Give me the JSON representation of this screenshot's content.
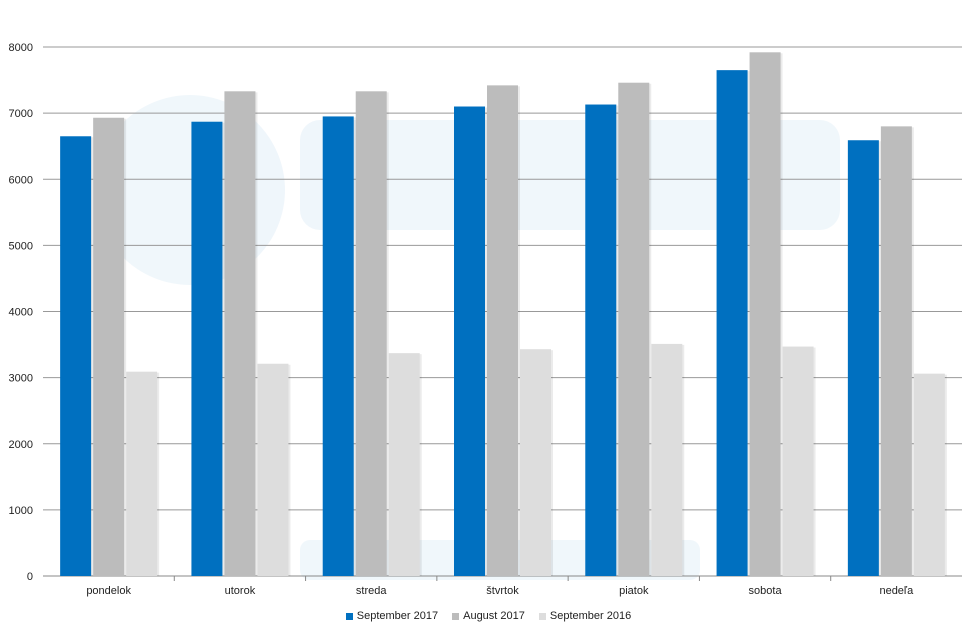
{
  "chart_data": {
    "type": "bar",
    "categories": [
      "pondelok",
      "utorok",
      "streda",
      "štvrtok",
      "piatok",
      "sobota",
      "nedeľa"
    ],
    "series": [
      {
        "name": "September 2017",
        "color": "#0070c0",
        "values": [
          6650,
          6870,
          6950,
          7100,
          7130,
          7650,
          6590
        ]
      },
      {
        "name": "August 2017",
        "color": "#bcbcbc",
        "values": [
          6930,
          7330,
          7330,
          7420,
          7460,
          7920,
          6800
        ]
      },
      {
        "name": "September 2016",
        "color": "#dddddd",
        "values": [
          3090,
          3210,
          3370,
          3430,
          3510,
          3470,
          3060
        ]
      }
    ],
    "ylim": [
      0,
      8000
    ],
    "yticks": [
      0,
      1000,
      2000,
      3000,
      4000,
      5000,
      6000,
      7000,
      8000
    ],
    "grid": true,
    "legend_position": "bottom-center"
  }
}
